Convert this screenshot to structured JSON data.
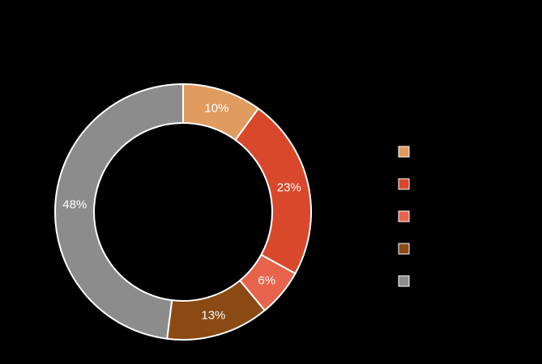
{
  "chart_data": {
    "type": "donut",
    "categories": [
      null,
      null,
      null,
      null,
      null
    ],
    "values": [
      10,
      23,
      6,
      13,
      48
    ],
    "value_labels": [
      "10%",
      "23%",
      "6%",
      "13%",
      "48%"
    ],
    "colors": [
      "#e09b5e",
      "#d9482b",
      "#e8634b",
      "#8b4a14",
      "#8c8c8c"
    ],
    "legend": "right"
  }
}
